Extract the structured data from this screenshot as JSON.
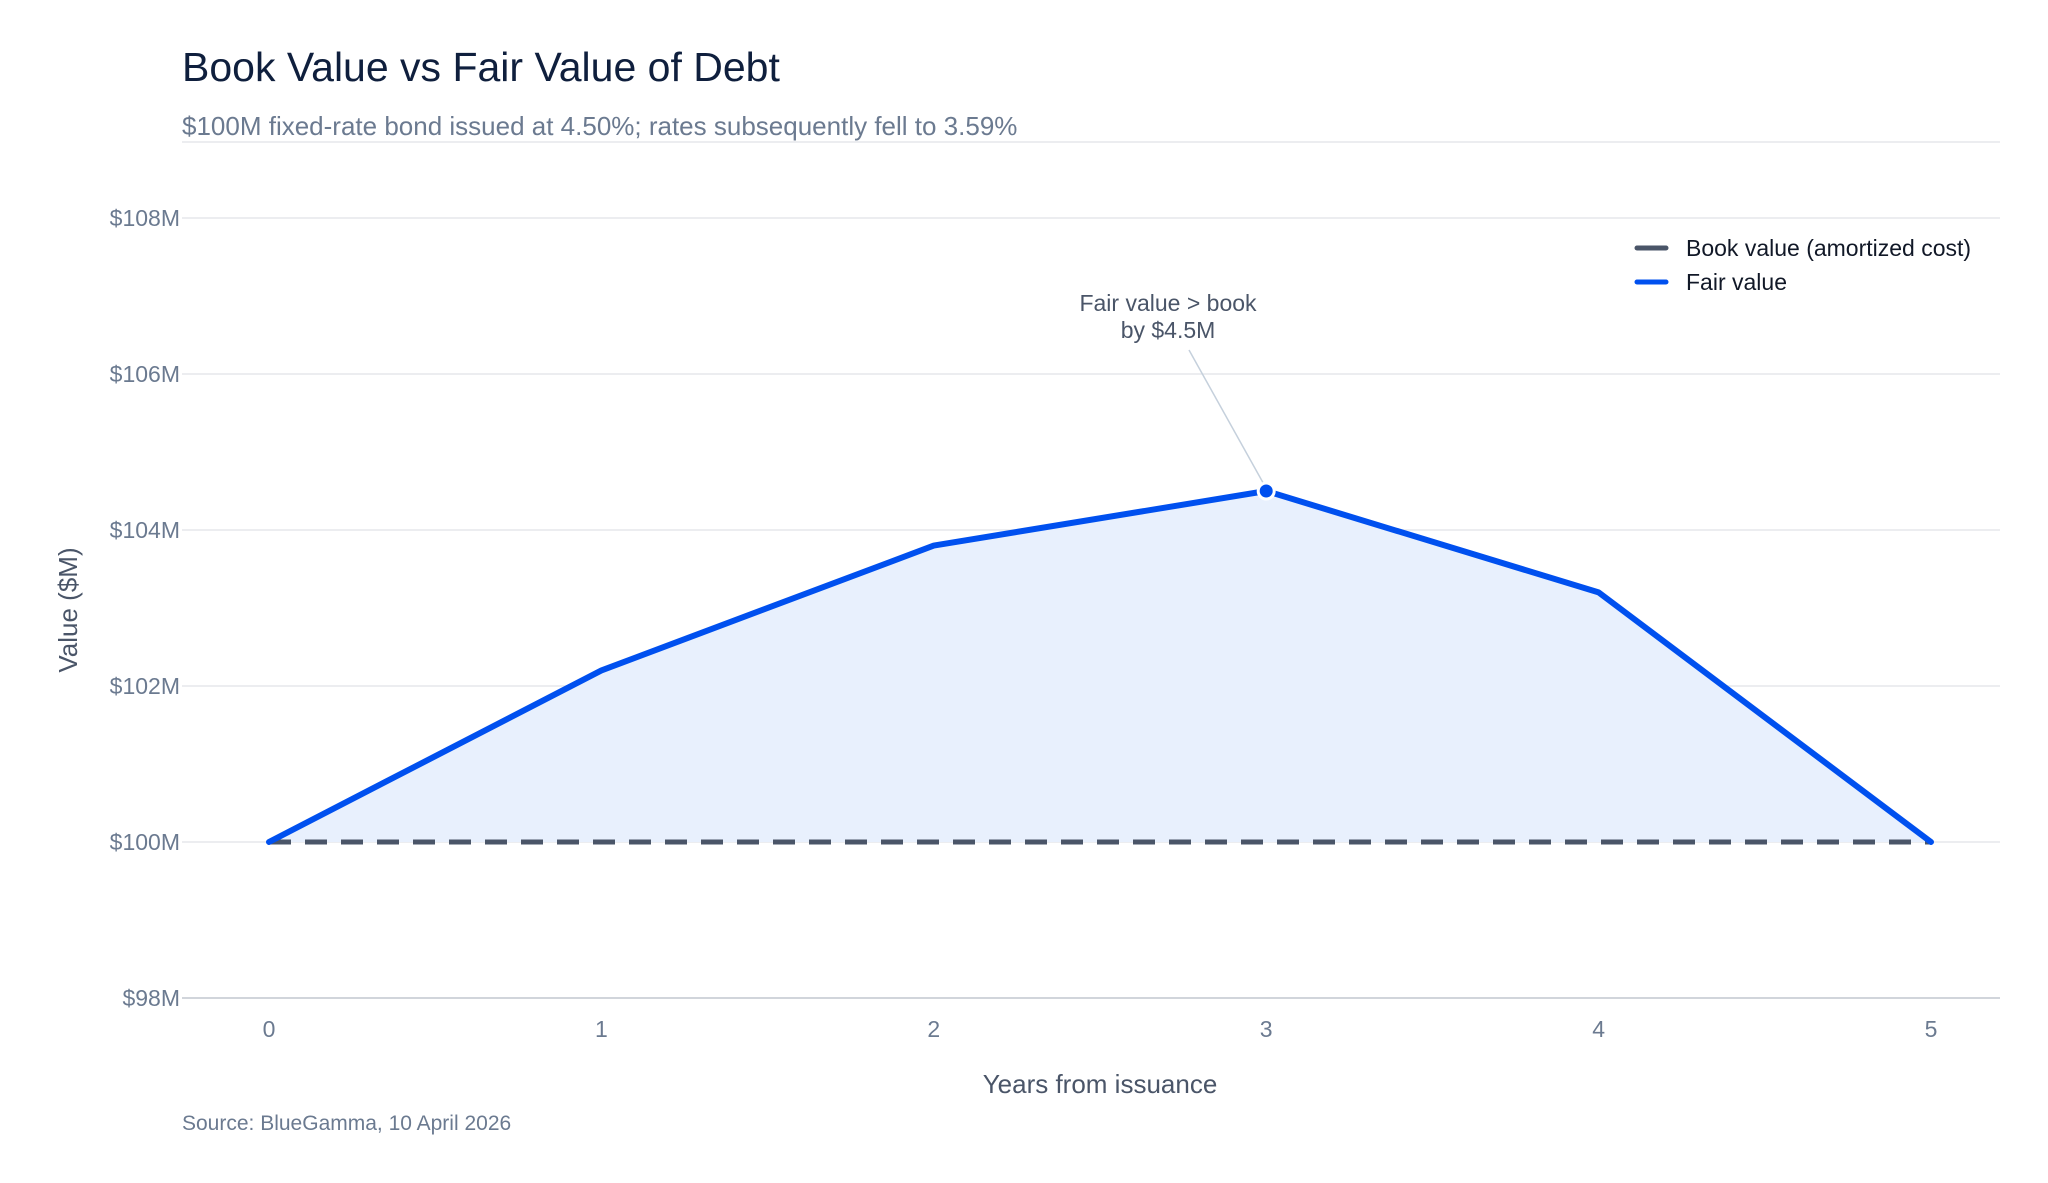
{
  "header": {
    "title": "Book Value vs Fair Value of Debt",
    "subtitle": "$100M fixed-rate bond issued at 4.50%; rates subsequently fell to 3.59%"
  },
  "footer": {
    "source": "Source: BlueGamma, 10 April 2026"
  },
  "colors": {
    "fair_value": "#0050ef",
    "fair_value_fill": "#e8f0fd",
    "book_value": "#4a5568",
    "grid": "#e5e7eb",
    "annotation_line": "#c5d0dc"
  },
  "chart_data": {
    "type": "line",
    "title": "Book Value vs Fair Value of Debt",
    "subtitle": "$100M fixed-rate bond issued at 4.50%; rates subsequently fell to 3.59%",
    "xlabel": "Years from issuance",
    "ylabel": "Value ($M)",
    "x": [
      0,
      1,
      2,
      3,
      4,
      5
    ],
    "x_tick_labels": [
      "0",
      "1",
      "2",
      "3",
      "4",
      "5"
    ],
    "xlim": [
      0,
      5
    ],
    "ylim": [
      98,
      108
    ],
    "y_ticks": [
      98,
      100,
      102,
      104,
      106,
      108
    ],
    "y_tick_labels": [
      "$98M",
      "$100M",
      "$102M",
      "$104M",
      "$106M",
      "$108M"
    ],
    "grid": true,
    "legend_position": "top-right",
    "series": [
      {
        "name": "Book value (amortized cost)",
        "style": "dashed",
        "values": [
          100,
          100,
          100,
          100,
          100,
          100
        ]
      },
      {
        "name": "Fair value",
        "style": "solid",
        "filled_to": "Book value (amortized cost)",
        "values": [
          100,
          102.2,
          103.8,
          104.5,
          103.2,
          100
        ]
      }
    ],
    "annotations": [
      {
        "x": 3,
        "y": 104.5,
        "lines": [
          "Fair value > book",
          "by $4.5M"
        ]
      }
    ]
  }
}
